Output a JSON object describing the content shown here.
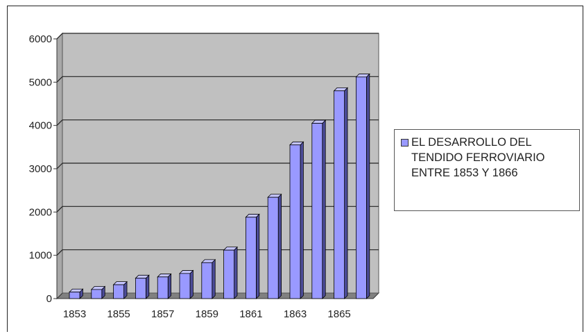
{
  "chart_data": {
    "type": "bar",
    "categories": [
      "1853",
      "1854",
      "1855",
      "1856",
      "1857",
      "1858",
      "1859",
      "1860",
      "1861",
      "1862",
      "1863",
      "1864",
      "1865",
      "1866"
    ],
    "x_tick_labels": [
      "1853",
      "1855",
      "1857",
      "1859",
      "1861",
      "1863",
      "1865"
    ],
    "series": [
      {
        "name": "EL DESARROLLO DEL TENDIDO FERROVIARIO ENTRE 1853 Y 1866",
        "values": [
          150,
          210,
          320,
          470,
          500,
          580,
          830,
          1120,
          1880,
          2340,
          3550,
          4050,
          4800,
          5120
        ]
      }
    ],
    "y_ticks": [
      "0",
      "1000",
      "2000",
      "3000",
      "4000",
      "5000",
      "6000"
    ],
    "ylim": [
      0,
      6000
    ],
    "grid": true,
    "legend_position": "right",
    "bar_color": "#9999ff",
    "bar_side_color": "#4c4c99",
    "bar_top_color": "#c4c4ff",
    "plot_background": "#c0c0c0"
  }
}
